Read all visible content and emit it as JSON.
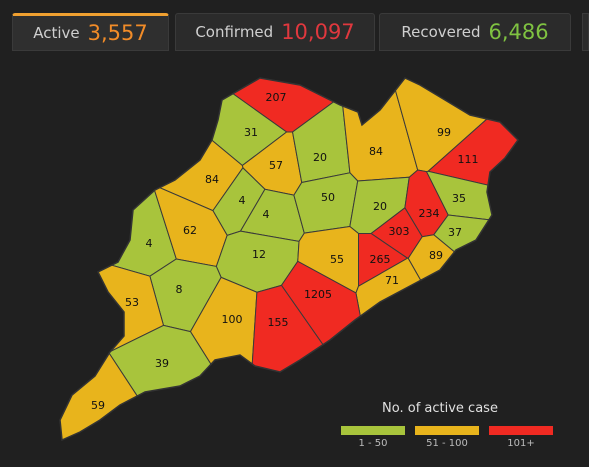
{
  "tabs": [
    {
      "label": "Active",
      "count": "3,557",
      "color": "#f28c28"
    },
    {
      "label": "Confirmed",
      "count": "10,097",
      "color": "#e0383e"
    },
    {
      "label": "Recovered",
      "count": "6,486",
      "color": "#7fc241"
    }
  ],
  "map": {
    "districts": [
      {
        "value": 207,
        "color": "#f02a22"
      },
      {
        "value": 31,
        "color": "#a8c43c"
      },
      {
        "value": 57,
        "color": "#e8b41c"
      },
      {
        "value": 20,
        "color": "#a8c43c"
      },
      {
        "value": 84,
        "color": "#e8b41c"
      },
      {
        "value": 99,
        "color": "#e8b41c"
      },
      {
        "value": 111,
        "color": "#f02a22"
      },
      {
        "value": 84,
        "color": "#e8b41c"
      },
      {
        "value": 4,
        "color": "#a8c43c"
      },
      {
        "value": 4,
        "color": "#a8c43c"
      },
      {
        "value": 50,
        "color": "#a8c43c"
      },
      {
        "value": 20,
        "color": "#a8c43c"
      },
      {
        "value": 234,
        "color": "#f02a22"
      },
      {
        "value": 35,
        "color": "#a8c43c"
      },
      {
        "value": 4,
        "color": "#a8c43c"
      },
      {
        "value": 62,
        "color": "#e8b41c"
      },
      {
        "value": 303,
        "color": "#f02a22"
      },
      {
        "value": 37,
        "color": "#a8c43c"
      },
      {
        "value": 12,
        "color": "#a8c43c"
      },
      {
        "value": 55,
        "color": "#e8b41c"
      },
      {
        "value": 265,
        "color": "#f02a22"
      },
      {
        "value": 89,
        "color": "#e8b41c"
      },
      {
        "value": 8,
        "color": "#a8c43c"
      },
      {
        "value": 71,
        "color": "#e8b41c"
      },
      {
        "value": 53,
        "color": "#e8b41c"
      },
      {
        "value": 1205,
        "color": "#f02a22"
      },
      {
        "value": 100,
        "color": "#e8b41c"
      },
      {
        "value": 155,
        "color": "#f02a22"
      },
      {
        "value": 39,
        "color": "#a8c43c"
      },
      {
        "value": 59,
        "color": "#e8b41c"
      }
    ],
    "legend": {
      "title": "No. of active case",
      "items": [
        {
          "label": "1 - 50",
          "color": "#a8c43c"
        },
        {
          "label": "51 - 100",
          "color": "#e8b41c"
        },
        {
          "label": "101+",
          "color": "#f02a22"
        }
      ]
    }
  }
}
